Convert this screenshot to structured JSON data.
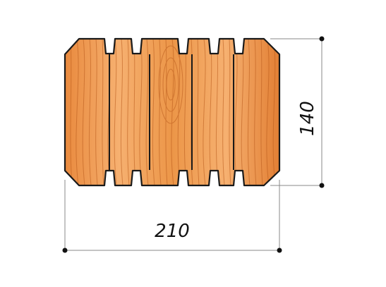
{
  "diagram": {
    "width_dimension": "210",
    "height_dimension": "140",
    "colors": {
      "wood_light": "#f6b070",
      "wood_mid": "#e98a3e",
      "wood_dark": "#c9651f",
      "grain": "#b85a1c",
      "outline": "#1a1a1a",
      "dimension_line": "#888888",
      "dimension_point": "#111111"
    }
  }
}
